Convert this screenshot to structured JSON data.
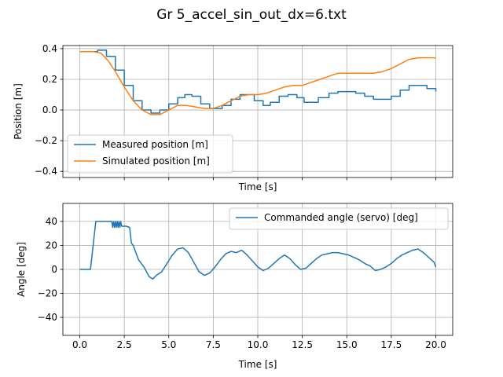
{
  "figure": {
    "title": "Gr 5_accel_sin_out_dx=6.txt"
  },
  "chart_data": [
    {
      "type": "line",
      "xlabel": "Time [s]",
      "ylabel": "Position [m]",
      "xlim": [
        -0.95,
        20.95
      ],
      "ylim": [
        -0.44,
        0.42
      ],
      "grid": true,
      "legend_position": "lower-left",
      "x_tick_labels_visible": false,
      "x_ticks": [
        0.0,
        2.5,
        5.0,
        7.5,
        10.0,
        12.5,
        15.0,
        17.5,
        20.0
      ],
      "x_tick_labels": [
        "0.0",
        "2.5",
        "5.0",
        "7.5",
        "10.0",
        "12.5",
        "15.0",
        "17.5",
        "20.0"
      ],
      "y_ticks": [
        -0.4,
        -0.2,
        0.0,
        0.2,
        0.4
      ],
      "y_tick_labels": [
        "−0.4",
        "−0.2",
        "0.0",
        "0.2",
        "0.4"
      ],
      "series": [
        {
          "name": "Measured position [m]",
          "color": "#1f77b4",
          "step": true,
          "x": [
            0.0,
            0.6,
            1.0,
            1.5,
            2.0,
            2.5,
            3.0,
            3.5,
            4.0,
            4.5,
            5.0,
            5.5,
            5.9,
            6.3,
            6.8,
            7.3,
            7.6,
            8.0,
            8.5,
            9.0,
            9.3,
            9.8,
            10.3,
            10.7,
            11.2,
            11.7,
            12.2,
            12.6,
            13.0,
            13.4,
            14.0,
            14.5,
            15.0,
            15.5,
            16.0,
            16.5,
            17.0,
            17.5,
            18.0,
            18.5,
            19.0,
            19.5,
            20.0
          ],
          "y": [
            0.38,
            0.38,
            0.39,
            0.35,
            0.26,
            0.16,
            0.06,
            0.0,
            -0.02,
            0.0,
            0.04,
            0.08,
            0.1,
            0.09,
            0.04,
            0.01,
            0.01,
            0.03,
            0.07,
            0.1,
            0.1,
            0.06,
            0.03,
            0.05,
            0.09,
            0.1,
            0.08,
            0.05,
            0.05,
            0.08,
            0.11,
            0.12,
            0.12,
            0.11,
            0.09,
            0.07,
            0.07,
            0.09,
            0.13,
            0.16,
            0.16,
            0.14,
            0.12
          ]
        },
        {
          "name": "Simulated position [m]",
          "color": "#ff7f0e",
          "step": false,
          "x": [
            0.0,
            0.8,
            1.2,
            1.6,
            2.0,
            2.5,
            3.0,
            3.5,
            4.0,
            4.5,
            5.0,
            5.5,
            6.0,
            6.5,
            7.0,
            7.5,
            8.0,
            8.5,
            9.0,
            9.5,
            10.0,
            10.5,
            11.0,
            11.5,
            12.0,
            12.5,
            13.0,
            13.5,
            14.0,
            14.5,
            15.0,
            15.5,
            16.0,
            16.5,
            17.0,
            17.5,
            18.0,
            18.5,
            19.0,
            19.5,
            20.0
          ],
          "y": [
            0.38,
            0.38,
            0.37,
            0.32,
            0.25,
            0.15,
            0.06,
            0.0,
            -0.03,
            -0.03,
            0.0,
            0.03,
            0.03,
            0.02,
            0.01,
            0.01,
            0.03,
            0.06,
            0.09,
            0.1,
            0.1,
            0.11,
            0.13,
            0.15,
            0.16,
            0.16,
            0.18,
            0.2,
            0.22,
            0.24,
            0.24,
            0.24,
            0.24,
            0.24,
            0.25,
            0.27,
            0.3,
            0.33,
            0.34,
            0.34,
            0.34
          ]
        }
      ]
    },
    {
      "type": "line",
      "xlabel": "Time [s]",
      "ylabel": "Angle [deg]",
      "xlim": [
        -0.95,
        20.95
      ],
      "ylim": [
        -55,
        55
      ],
      "grid": true,
      "legend_position": "upper-right",
      "x_tick_labels_visible": true,
      "x_ticks": [
        0.0,
        2.5,
        5.0,
        7.5,
        10.0,
        12.5,
        15.0,
        17.5,
        20.0
      ],
      "x_tick_labels": [
        "0.0",
        "2.5",
        "5.0",
        "7.5",
        "10.0",
        "12.5",
        "15.0",
        "17.5",
        "20.0"
      ],
      "y_ticks": [
        -40,
        -20,
        0,
        20,
        40
      ],
      "y_tick_labels": [
        "−40",
        "−20",
        "0",
        "20",
        "40"
      ],
      "series": [
        {
          "name": "Commanded angle (servo) [deg]",
          "color": "#1f77b4",
          "step": false,
          "x": [
            0.0,
            0.3,
            0.6,
            0.9,
            1.0,
            1.2,
            1.5,
            1.8,
            1.85,
            1.9,
            1.95,
            2.0,
            2.05,
            2.1,
            2.15,
            2.2,
            2.25,
            2.3,
            2.35,
            2.4,
            2.6,
            2.8,
            2.9,
            3.0,
            3.3,
            3.6,
            3.9,
            4.1,
            4.3,
            4.6,
            4.9,
            5.2,
            5.5,
            5.8,
            6.1,
            6.4,
            6.7,
            7.0,
            7.3,
            7.6,
            7.9,
            8.2,
            8.5,
            8.8,
            9.1,
            9.4,
            9.7,
            10.0,
            10.3,
            10.6,
            10.9,
            11.2,
            11.5,
            11.8,
            12.1,
            12.4,
            12.7,
            13.0,
            13.3,
            13.6,
            13.9,
            14.2,
            14.5,
            14.8,
            15.1,
            15.4,
            15.7,
            16.0,
            16.3,
            16.6,
            16.9,
            17.2,
            17.5,
            17.8,
            18.1,
            18.4,
            18.7,
            19.0,
            19.3,
            19.6,
            19.9,
            20.0
          ],
          "y": [
            0,
            0,
            0,
            40,
            40,
            40,
            40,
            40,
            35,
            40,
            35,
            40,
            35,
            40,
            35,
            40,
            35,
            40,
            36,
            36,
            36,
            35,
            22,
            20,
            8,
            2,
            -6,
            -8,
            -5,
            -2,
            5,
            12,
            17,
            18,
            14,
            6,
            -2,
            -5,
            -3,
            2,
            8,
            13,
            15,
            14,
            16,
            12,
            7,
            2,
            -1,
            1,
            5,
            9,
            12,
            9,
            4,
            0,
            1,
            5,
            9,
            12,
            13,
            14,
            14,
            13,
            12,
            10,
            8,
            5,
            3,
            -1,
            0,
            2,
            5,
            9,
            12,
            14,
            16,
            17,
            14,
            10,
            6,
            2
          ]
        }
      ]
    }
  ]
}
